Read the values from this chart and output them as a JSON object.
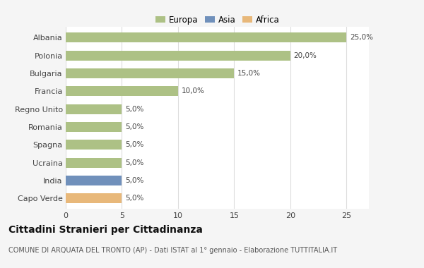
{
  "countries": [
    "Albania",
    "Polonia",
    "Bulgaria",
    "Francia",
    "Regno Unito",
    "Romania",
    "Spagna",
    "Ucraina",
    "India",
    "Capo Verde"
  ],
  "values": [
    25.0,
    20.0,
    15.0,
    10.0,
    5.0,
    5.0,
    5.0,
    5.0,
    5.0,
    5.0
  ],
  "bar_labels": [
    "25,0%",
    "20,0%",
    "15,0%",
    "10,0%",
    "5,0%",
    "5,0%",
    "5,0%",
    "5,0%",
    "5,0%",
    "5,0%"
  ],
  "bar_color_list": [
    "#adc185",
    "#adc185",
    "#adc185",
    "#adc185",
    "#adc185",
    "#adc185",
    "#adc185",
    "#adc185",
    "#7090bb",
    "#e8b87a"
  ],
  "colors": {
    "Europa": "#adc185",
    "Asia": "#7090bb",
    "Africa": "#e8b87a"
  },
  "xlim": [
    0,
    27
  ],
  "xticks": [
    0,
    5,
    10,
    15,
    20,
    25
  ],
  "title": "Cittadini Stranieri per Cittadinanza",
  "subtitle": "COMUNE DI ARQUATA DEL TRONTO (AP) - Dati ISTAT al 1° gennaio - Elaborazione TUTTITALIA.IT",
  "background_color": "#f5f5f5",
  "plot_bg_color": "#ffffff",
  "bar_height": 0.55,
  "label_fontsize": 7.5,
  "tick_fontsize": 8,
  "title_fontsize": 10,
  "subtitle_fontsize": 7
}
